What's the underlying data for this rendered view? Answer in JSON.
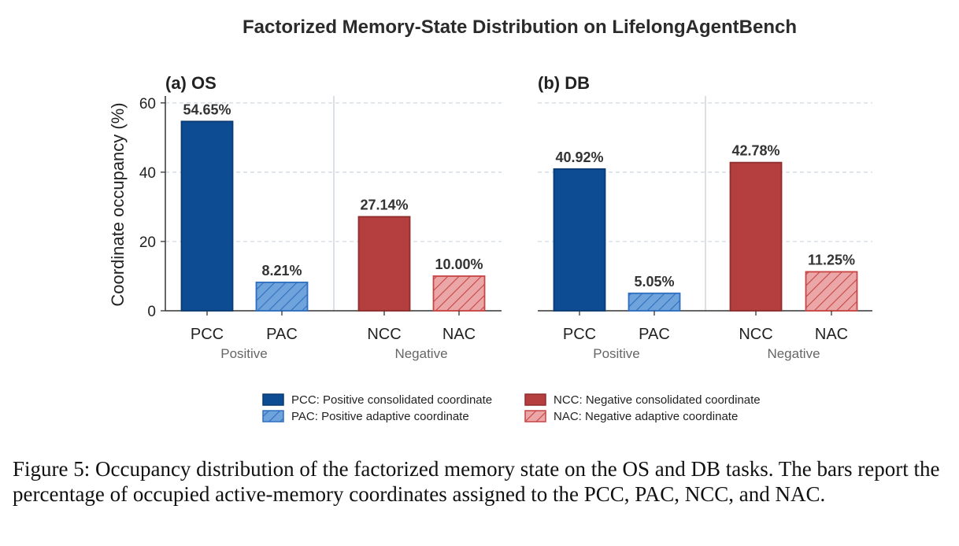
{
  "chart_data": {
    "type": "bar",
    "title": "Factorized Memory-State Distribution on LifelongAgentBench",
    "ylabel": "Coordinate occupancy (%)",
    "ylim": [
      0,
      62
    ],
    "yticks": [
      0,
      20,
      40,
      60
    ],
    "grid": "horizontal dashed",
    "categories": [
      "PCC",
      "PAC",
      "NCC",
      "NAC"
    ],
    "groups": [
      "Positive",
      "Negative"
    ],
    "panels": [
      {
        "title": "(a) OS",
        "values": [
          54.65,
          8.21,
          27.14,
          10.0
        ],
        "value_labels": [
          "54.65%",
          "8.21%",
          "27.14%",
          "10.00%"
        ]
      },
      {
        "title": "(b) DB",
        "values": [
          40.92,
          5.05,
          42.78,
          11.25
        ],
        "value_labels": [
          "40.92%",
          "5.05%",
          "42.78%",
          "11.25%"
        ]
      }
    ],
    "colors": {
      "PCC": "#0d4c92",
      "PAC": "#6fa3dc",
      "PAC_edge": "#2e6fbf",
      "NCC": "#b53f3f",
      "NAC": "#eba7a7",
      "NAC_edge": "#c84545"
    },
    "legend": [
      {
        "key": "PCC",
        "label": "PCC: Positive consolidated coordinate"
      },
      {
        "key": "NCC",
        "label": "NCC: Negative consolidated coordinate"
      },
      {
        "key": "PAC",
        "label": "PAC: Positive adaptive coordinate"
      },
      {
        "key": "NAC",
        "label": "NAC: Negative adaptive coordinate"
      }
    ],
    "legend_position": "bottom"
  },
  "caption": "Figure 5: Occupancy distribution of the factorized memory state on the OS and DB tasks. The bars report the percentage of occupied active-memory coordinates assigned to the PCC, PAC, NCC, and NAC."
}
